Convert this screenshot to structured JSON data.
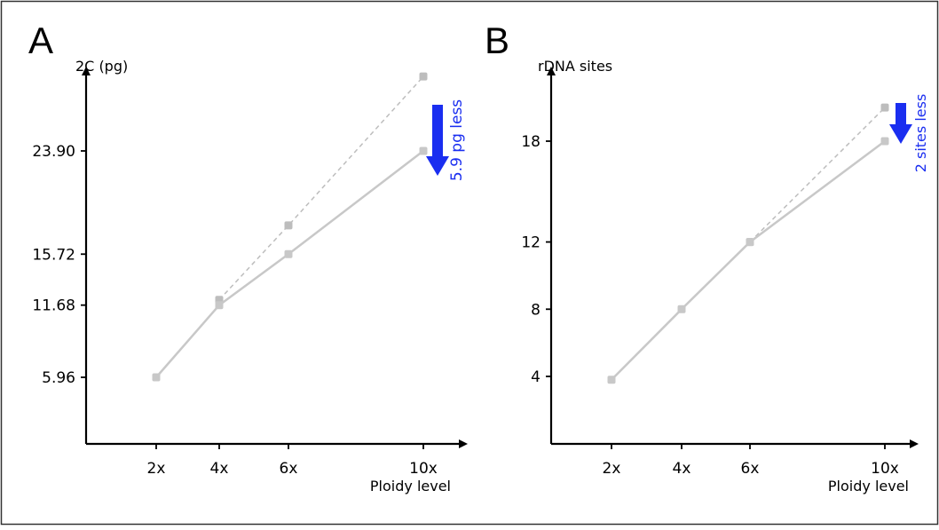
{
  "colors": {
    "observed": "#c8c8c8",
    "expected": "#bdbdbd",
    "axis": "#000000",
    "annotation": "#1a2ef0",
    "frame": "#333333"
  },
  "chart_data": [
    {
      "type": "line",
      "panel_label": "A",
      "ylabel": "2C (pg)",
      "xlabel": "Ploidy level",
      "x_ticks": [
        "2x",
        "4x",
        "6x",
        "10x"
      ],
      "y_ticks": [
        5.96,
        11.68,
        15.72,
        23.9
      ],
      "y_tick_labels": [
        "5.96",
        "11.68",
        "15.72",
        "23.90"
      ],
      "series": [
        {
          "style": "solid",
          "x": [
            "2x",
            "4x",
            "6x",
            "10x"
          ],
          "values": [
            5.96,
            11.68,
            15.72,
            23.9
          ]
        },
        {
          "style": "dashed",
          "x": [
            "4x",
            "6x",
            "10x"
          ],
          "values": [
            12.1,
            18.0,
            29.8
          ]
        }
      ],
      "annotation": {
        "text": "5.9 pg less",
        "arrow": "down"
      },
      "grid": false,
      "legend": "none"
    },
    {
      "type": "line",
      "panel_label": "B",
      "ylabel": "rDNA sites",
      "xlabel": "Ploidy level",
      "x_ticks": [
        "2x",
        "4x",
        "6x",
        "10x"
      ],
      "y_ticks": [
        4,
        8,
        12,
        18
      ],
      "y_tick_labels": [
        "4",
        "8",
        "12",
        "18"
      ],
      "series": [
        {
          "style": "solid",
          "x": [
            "2x",
            "4x",
            "6x",
            "10x"
          ],
          "values": [
            3.8,
            8,
            12,
            18
          ]
        },
        {
          "style": "dashed",
          "x": [
            "6x",
            "10x"
          ],
          "values": [
            12,
            20
          ]
        }
      ],
      "annotation": {
        "text": "2 sites less",
        "arrow": "down"
      },
      "grid": false,
      "legend": "none"
    }
  ]
}
